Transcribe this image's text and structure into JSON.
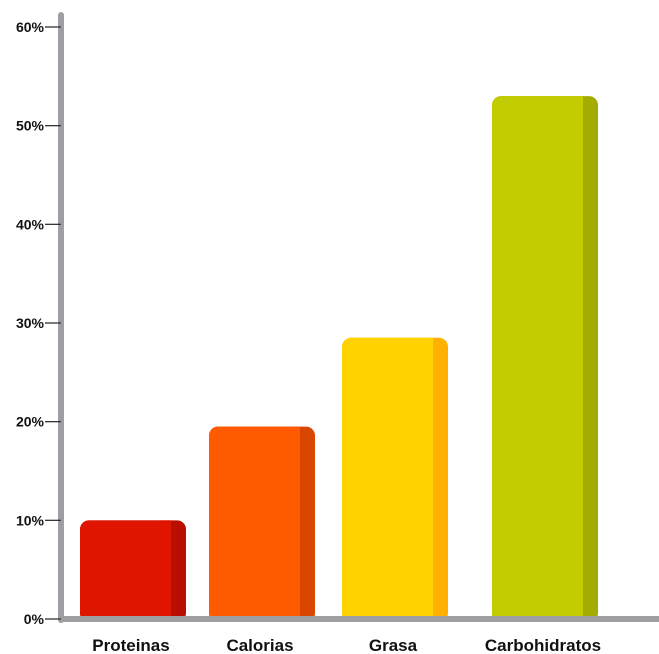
{
  "chart_data": {
    "type": "bar",
    "categories": [
      "Proteinas",
      "Calorias",
      "Grasa",
      "Carbohidratos"
    ],
    "values": [
      10,
      19.5,
      28.5,
      53
    ],
    "ylim": [
      0,
      60
    ],
    "yticks": [
      0,
      10,
      20,
      30,
      40,
      50,
      60
    ],
    "ytick_labels": [
      "0%",
      "10%",
      "20%",
      "30%",
      "40%",
      "50%",
      "60%"
    ],
    "grid": false,
    "colors": [
      {
        "front": "#E01500",
        "side": "#B80F00"
      },
      {
        "front": "#FF5A00",
        "side": "#D94600"
      },
      {
        "front": "#FFD200",
        "side": "#FFB000"
      },
      {
        "front": "#C2CC00",
        "side": "#A3AC00"
      }
    ],
    "axis_color": "#9E9EA3"
  }
}
